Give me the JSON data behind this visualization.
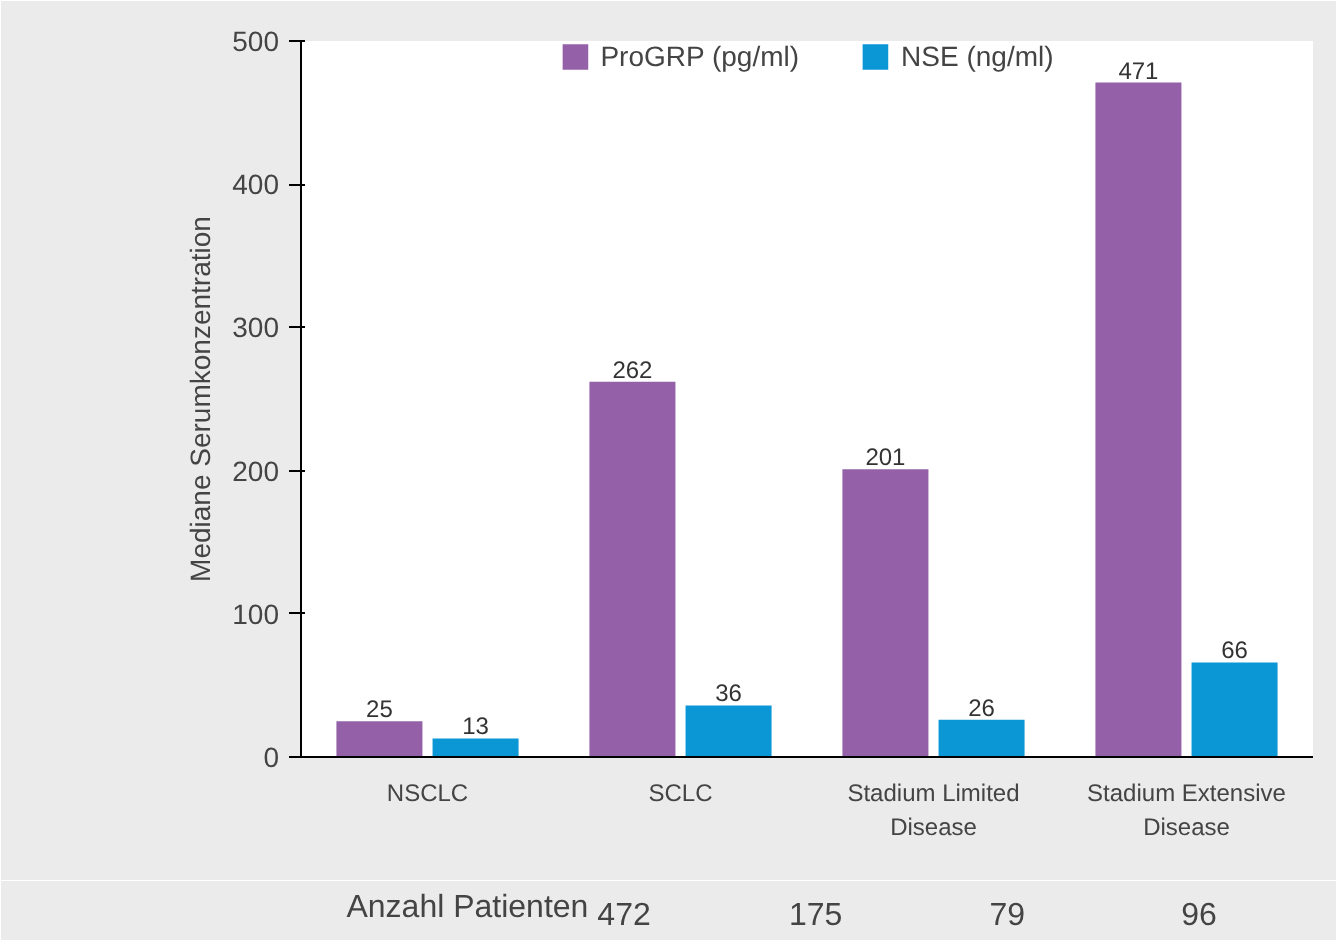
{
  "chart_data": {
    "type": "bar",
    "ylabel": "Mediane Serumkonzentration",
    "categories": [
      "NSCLC",
      "SCLC",
      "Stadium Limited Disease",
      "Stadium Extensive Disease"
    ],
    "series": [
      {
        "name": "ProGRP (pg/ml)",
        "color": "#9460a8",
        "values": [
          25,
          262,
          201,
          471
        ]
      },
      {
        "name": "NSE (ng/ml)",
        "color": "#0b97d6",
        "values": [
          13,
          36,
          26,
          66
        ]
      }
    ],
    "ylim": [
      0,
      500
    ],
    "yticks": [
      0,
      100,
      200,
      300,
      400,
      500
    ],
    "grid": false,
    "legend": "top",
    "data_labels": true,
    "annotations": [
      "Anzahl Patienten",
      "472",
      "175",
      "79",
      "96"
    ]
  }
}
